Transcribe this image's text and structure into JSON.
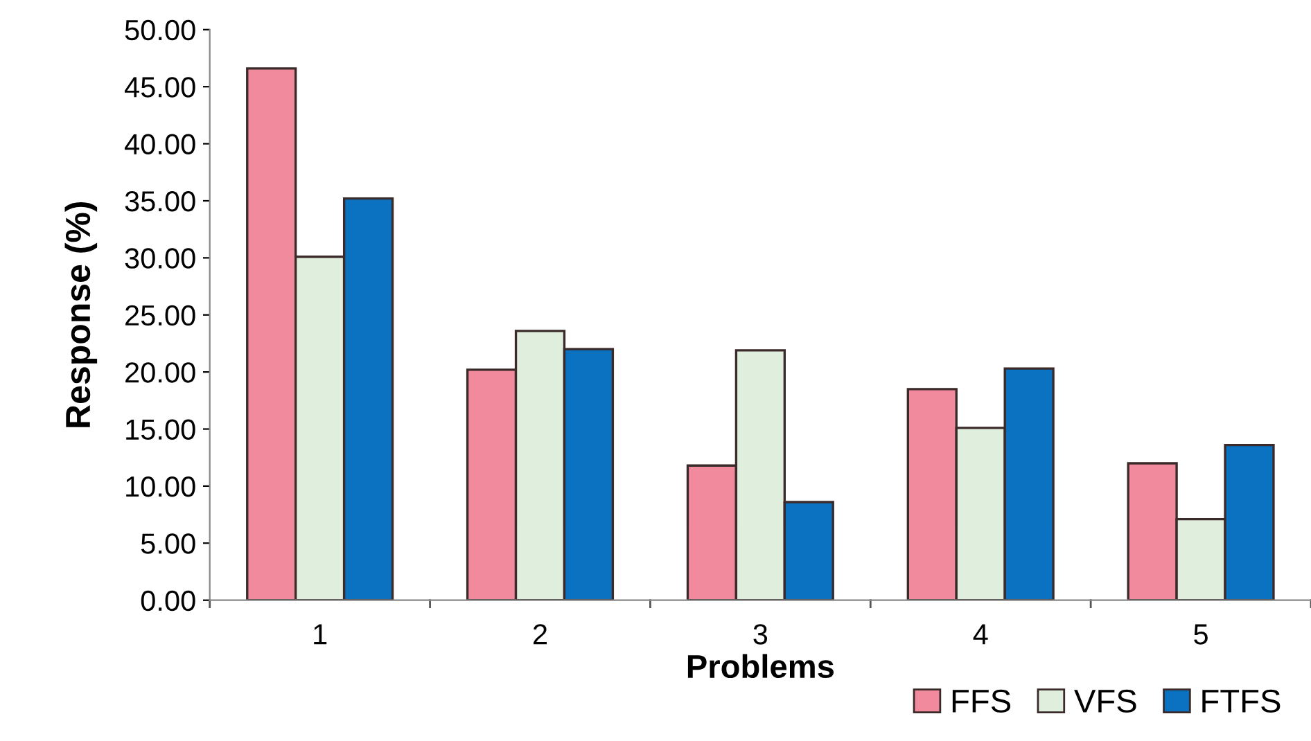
{
  "chart_data": {
    "type": "bar",
    "xlabel": "Problems",
    "ylabel": "Response (%)",
    "categories": [
      "1",
      "2",
      "3",
      "4",
      "5"
    ],
    "series": [
      {
        "name": "FFS",
        "color": "#f08a9c",
        "values": [
          46.6,
          20.2,
          11.8,
          18.5,
          12.0
        ]
      },
      {
        "name": "VFS",
        "color": "#dfeedd",
        "values": [
          30.1,
          23.6,
          21.9,
          15.1,
          7.1
        ]
      },
      {
        "name": "FTFS",
        "color": "#0a72c0",
        "values": [
          35.2,
          22.0,
          8.6,
          20.3,
          13.6
        ]
      }
    ],
    "ylim": [
      0,
      50
    ],
    "yticks": [
      {
        "value": 0,
        "label": "0.00"
      },
      {
        "value": 5,
        "label": "5.00"
      },
      {
        "value": 10,
        "label": "10.00"
      },
      {
        "value": 15,
        "label": "15.00"
      },
      {
        "value": 20,
        "label": "20.00"
      },
      {
        "value": 25,
        "label": "25.00"
      },
      {
        "value": 30,
        "label": "30.00"
      },
      {
        "value": 35,
        "label": "35.00"
      },
      {
        "value": 40,
        "label": "40.00"
      },
      {
        "value": 45,
        "label": "45.00"
      },
      {
        "value": 50,
        "label": "50.00"
      }
    ],
    "grid": false,
    "legend": "bottom right"
  }
}
